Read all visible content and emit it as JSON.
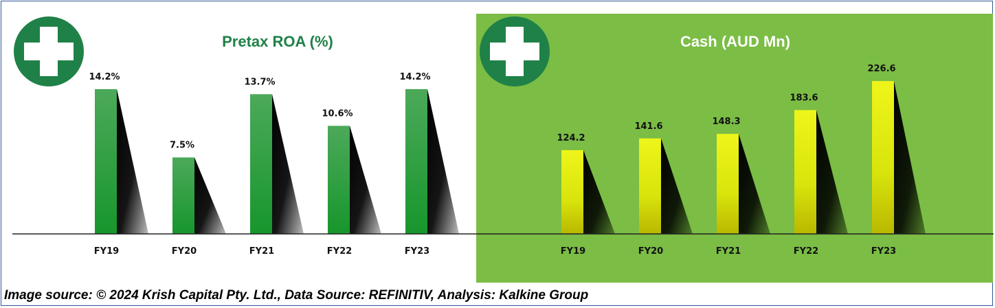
{
  "colors": {
    "left_bar": "#3fa24f",
    "left_bar_dark": "#17962c",
    "right_bar": "#e2ef10",
    "right_bar_dark": "#a8a600",
    "right_panel": "#7bbd45",
    "icon_circle": "#1f8147",
    "left_title": "#1f8147",
    "right_title": "#ffffff",
    "baseline": "#222222"
  },
  "icons": [
    "plus-cross-icon"
  ],
  "chart_data": [
    {
      "type": "bar",
      "title": "Pretax ROA (%)",
      "categories": [
        "FY19",
        "FY20",
        "FY21",
        "FY22",
        "FY23"
      ],
      "values": [
        14.2,
        7.5,
        13.7,
        10.6,
        14.2
      ],
      "data_labels": [
        "14.2%",
        "7.5%",
        "13.7%",
        "10.6%",
        "14.2%"
      ],
      "ylim": [
        0,
        15
      ],
      "grid": false,
      "legend": "none"
    },
    {
      "type": "bar",
      "title": "Cash (AUD Mn)",
      "categories": [
        "FY19",
        "FY20",
        "FY21",
        "FY22",
        "FY23"
      ],
      "values": [
        124.2,
        141.6,
        148.3,
        183.6,
        226.6
      ],
      "data_labels": [
        "124.2",
        "141.6",
        "148.3",
        "183.6",
        "226.6"
      ],
      "ylim": [
        0,
        240
      ],
      "grid": false,
      "legend": "none"
    }
  ],
  "footer": {
    "source": "Image source: © 2024 Krish Capital Pty. Ltd., Data Source: REFINITIV, Analysis: Kalkine Group"
  }
}
